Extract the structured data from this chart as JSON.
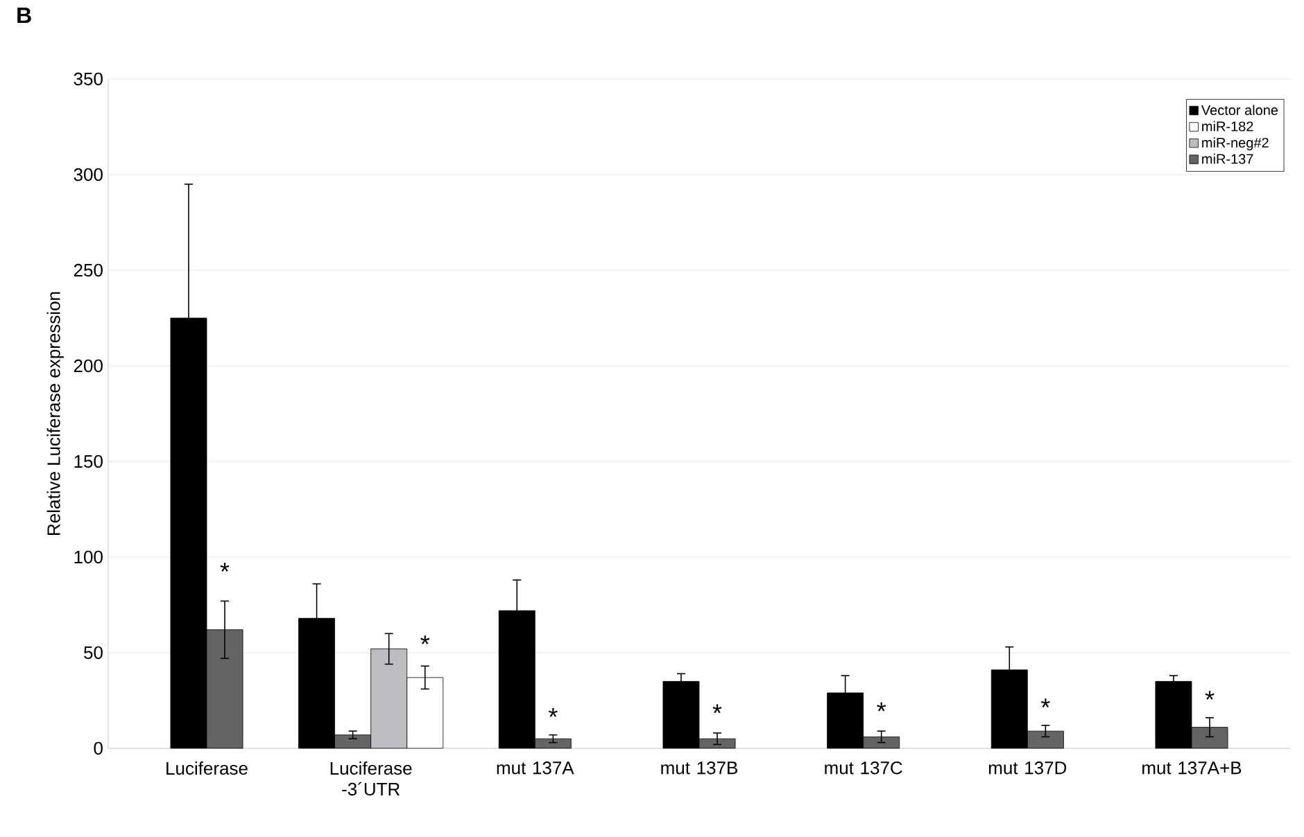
{
  "chart_data": {
    "type": "bar",
    "title": "B",
    "ylabel": "Relative Luciferase expression",
    "categories": [
      "Luciferase",
      "Luciferase -3´UTR",
      "mut 137A",
      "mut 137B",
      "mut 137C",
      "mut 137D",
      "mut 137A+B"
    ],
    "series": [
      {
        "name": "Vector alone",
        "color": "#000000",
        "values": [
          225,
          68,
          72,
          35,
          29,
          41,
          35
        ],
        "errors": [
          70,
          18,
          16,
          4,
          9,
          12,
          3
        ]
      },
      {
        "name": "miR-182",
        "color": "#ffffff",
        "values": [
          null,
          37,
          null,
          null,
          null,
          null,
          null
        ],
        "errors": [
          null,
          6,
          null,
          null,
          null,
          null,
          null
        ]
      },
      {
        "name": "miR-neg#2",
        "color": "#bcbdc0",
        "values": [
          null,
          52,
          null,
          null,
          null,
          null,
          null
        ],
        "errors": [
          null,
          8,
          null,
          null,
          null,
          null,
          null
        ]
      },
      {
        "name": "miR-137",
        "color": "#646464",
        "values": [
          62,
          7,
          5,
          5,
          6,
          9,
          11
        ],
        "errors": [
          15,
          2,
          2,
          3,
          3,
          3,
          5
        ]
      }
    ],
    "ylim": [
      0,
      350
    ],
    "yticks": [
      0,
      50,
      100,
      150,
      200,
      250,
      300,
      350
    ],
    "grid": "y",
    "legend": "top right",
    "annotations": [
      {
        "text": "*",
        "x": "Luciferase",
        "y": 88
      },
      {
        "text": "*",
        "x": "Luciferase -3´UTR",
        "y": 50
      },
      {
        "text": "*",
        "x": "mut 137A",
        "y": 12
      },
      {
        "text": "*",
        "x": "mut 137B",
        "y": 14
      },
      {
        "text": "*",
        "x": "mut 137C",
        "y": 15
      },
      {
        "text": "*",
        "x": "mut 137D",
        "y": 17
      },
      {
        "text": "*",
        "x": "mut 137A+B",
        "y": 21
      }
    ]
  }
}
